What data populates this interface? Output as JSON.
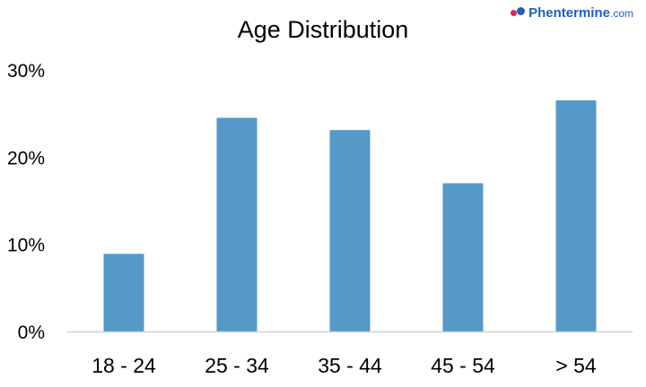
{
  "logo": {
    "name": "Phentermine",
    "suffix": ".com"
  },
  "colors": {
    "bar": "#5599c9",
    "axis": "#d0d0d0",
    "text": "#000000"
  },
  "chart_data": {
    "type": "bar",
    "title": "Age Distribution",
    "xlabel": "",
    "ylabel": "",
    "categories": [
      "18 - 24",
      "25 - 34",
      "35 - 44",
      "45 - 54",
      "> 54"
    ],
    "values": [
      8.9,
      24.5,
      23.1,
      17.0,
      26.5
    ],
    "ylim": [
      0,
      30
    ],
    "yticks": [
      0,
      10,
      20,
      30
    ],
    "ytick_labels": [
      "0%",
      "10%",
      "20%",
      "30%"
    ],
    "grid": false,
    "legend": "none"
  }
}
